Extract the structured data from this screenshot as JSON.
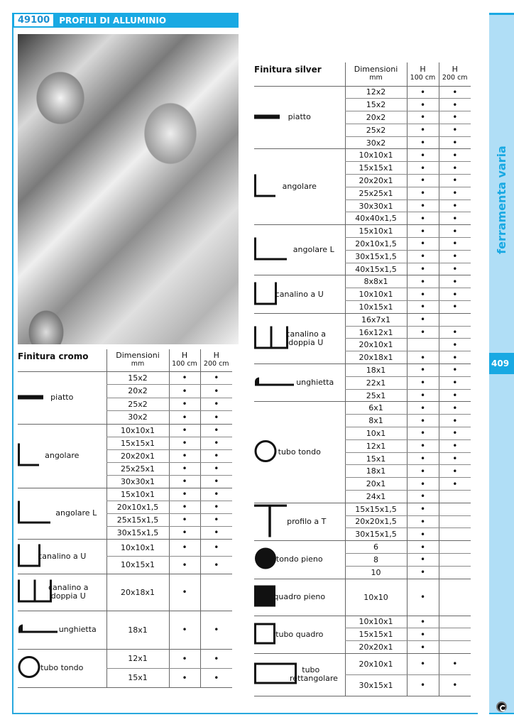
{
  "header": {
    "code": "49100",
    "title": "PROFILI DI ALLUMINIO"
  },
  "sidebar": {
    "section": "ferramenta varia",
    "page": "409"
  },
  "colors": {
    "accent": "#19a9e3",
    "sidebar_bg": "#b0def6"
  },
  "columns": {
    "dimensions": "Dimensioni",
    "dimensions_unit": "mm",
    "h": "H",
    "h100": "100 cm",
    "h200": "200 cm"
  },
  "dot": "•",
  "tables": {
    "cromo": {
      "title": "Finitura cromo",
      "groups": [
        {
          "name": "piatto",
          "icon": "flat-bar-icon",
          "rows": [
            [
              "15x2",
              1,
              1
            ],
            [
              "20x2",
              1,
              1
            ],
            [
              "25x2",
              1,
              1
            ],
            [
              "30x2",
              1,
              1
            ]
          ]
        },
        {
          "name": "angolare",
          "icon": "angle-icon",
          "rows": [
            [
              "10x10x1",
              1,
              1
            ],
            [
              "15x15x1",
              1,
              1
            ],
            [
              "20x20x1",
              1,
              1
            ],
            [
              "25x25x1",
              1,
              1
            ],
            [
              "30x30x1",
              1,
              1
            ]
          ]
        },
        {
          "name": "angolare L",
          "icon": "angle-l-icon",
          "rows": [
            [
              "15x10x1",
              1,
              1
            ],
            [
              "20x10x1,5",
              1,
              1
            ],
            [
              "25x15x1,5",
              1,
              1
            ],
            [
              "30x15x1,5",
              1,
              1
            ]
          ]
        },
        {
          "name": "canalino a U",
          "icon": "u-channel-icon",
          "rows": [
            [
              "10x10x1",
              1,
              1
            ],
            [
              "10x15x1",
              1,
              1
            ]
          ]
        },
        {
          "name": "canalino a doppia U",
          "icon": "double-u-channel-icon",
          "rows": [
            [
              "20x18x1",
              1,
              0
            ]
          ]
        },
        {
          "name": "unghietta",
          "icon": "edge-trim-icon",
          "rows": [
            [
              "18x1",
              1,
              1
            ]
          ]
        },
        {
          "name": "tubo tondo",
          "icon": "round-tube-icon",
          "rows": [
            [
              "12x1",
              1,
              1
            ],
            [
              "15x1",
              1,
              1
            ]
          ]
        }
      ]
    },
    "silver": {
      "title": "Finitura silver",
      "groups": [
        {
          "name": "piatto",
          "icon": "flat-bar-icon",
          "rows": [
            [
              "12x2",
              1,
              1
            ],
            [
              "15x2",
              1,
              1
            ],
            [
              "20x2",
              1,
              1
            ],
            [
              "25x2",
              1,
              1
            ],
            [
              "30x2",
              1,
              1
            ]
          ]
        },
        {
          "name": "angolare",
          "icon": "angle-icon",
          "rows": [
            [
              "10x10x1",
              1,
              1
            ],
            [
              "15x15x1",
              1,
              1
            ],
            [
              "20x20x1",
              1,
              1
            ],
            [
              "25x25x1",
              1,
              1
            ],
            [
              "30x30x1",
              1,
              1
            ],
            [
              "40x40x1,5",
              1,
              1
            ]
          ]
        },
        {
          "name": "angolare L",
          "icon": "angle-l-icon",
          "rows": [
            [
              "15x10x1",
              1,
              1
            ],
            [
              "20x10x1,5",
              1,
              1
            ],
            [
              "30x15x1,5",
              1,
              1
            ],
            [
              "40x15x1,5",
              1,
              1
            ]
          ]
        },
        {
          "name": "canalino a U",
          "icon": "u-channel-icon",
          "rows": [
            [
              "8x8x1",
              1,
              1
            ],
            [
              "10x10x1",
              1,
              1
            ],
            [
              "10x15x1",
              1,
              1
            ]
          ]
        },
        {
          "name": "canalino a doppia U",
          "icon": "double-u-channel-icon",
          "rows": [
            [
              "16x7x1",
              1,
              0
            ],
            [
              "16x12x1",
              1,
              1
            ],
            [
              "20x10x1",
              0,
              1
            ],
            [
              "20x18x1",
              1,
              1
            ]
          ]
        },
        {
          "name": "unghietta",
          "icon": "edge-trim-icon",
          "rows": [
            [
              "18x1",
              1,
              1
            ],
            [
              "22x1",
              1,
              1
            ],
            [
              "25x1",
              1,
              1
            ]
          ]
        },
        {
          "name": "tubo tondo",
          "icon": "round-tube-icon",
          "rows": [
            [
              "6x1",
              1,
              1
            ],
            [
              "8x1",
              1,
              1
            ],
            [
              "10x1",
              1,
              1
            ],
            [
              "12x1",
              1,
              1
            ],
            [
              "15x1",
              1,
              1
            ],
            [
              "18x1",
              1,
              1
            ],
            [
              "20x1",
              1,
              1
            ],
            [
              "24x1",
              1,
              0
            ]
          ]
        },
        {
          "name": "profilo a T",
          "icon": "t-profile-icon",
          "rows": [
            [
              "15x15x1,5",
              1,
              0
            ],
            [
              "20x20x1,5",
              1,
              0
            ],
            [
              "30x15x1,5",
              1,
              0
            ]
          ]
        },
        {
          "name": "tondo pieno",
          "icon": "solid-round-icon",
          "rows": [
            [
              "6",
              1,
              0
            ],
            [
              "8",
              1,
              0
            ],
            [
              "10",
              1,
              0
            ]
          ]
        },
        {
          "name": "quadro pieno",
          "icon": "solid-square-icon",
          "rows": [
            [
              "10x10",
              1,
              0
            ]
          ]
        },
        {
          "name": "tubo quadro",
          "icon": "square-tube-icon",
          "rows": [
            [
              "10x10x1",
              1,
              0
            ],
            [
              "15x15x1",
              1,
              0
            ],
            [
              "20x20x1",
              1,
              0
            ]
          ]
        },
        {
          "name": "tubo rettangolare",
          "icon": "rectangular-tube-icon",
          "rows": [
            [
              "20x10x1",
              1,
              1
            ],
            [
              "30x15x1",
              1,
              1
            ]
          ]
        }
      ]
    }
  }
}
